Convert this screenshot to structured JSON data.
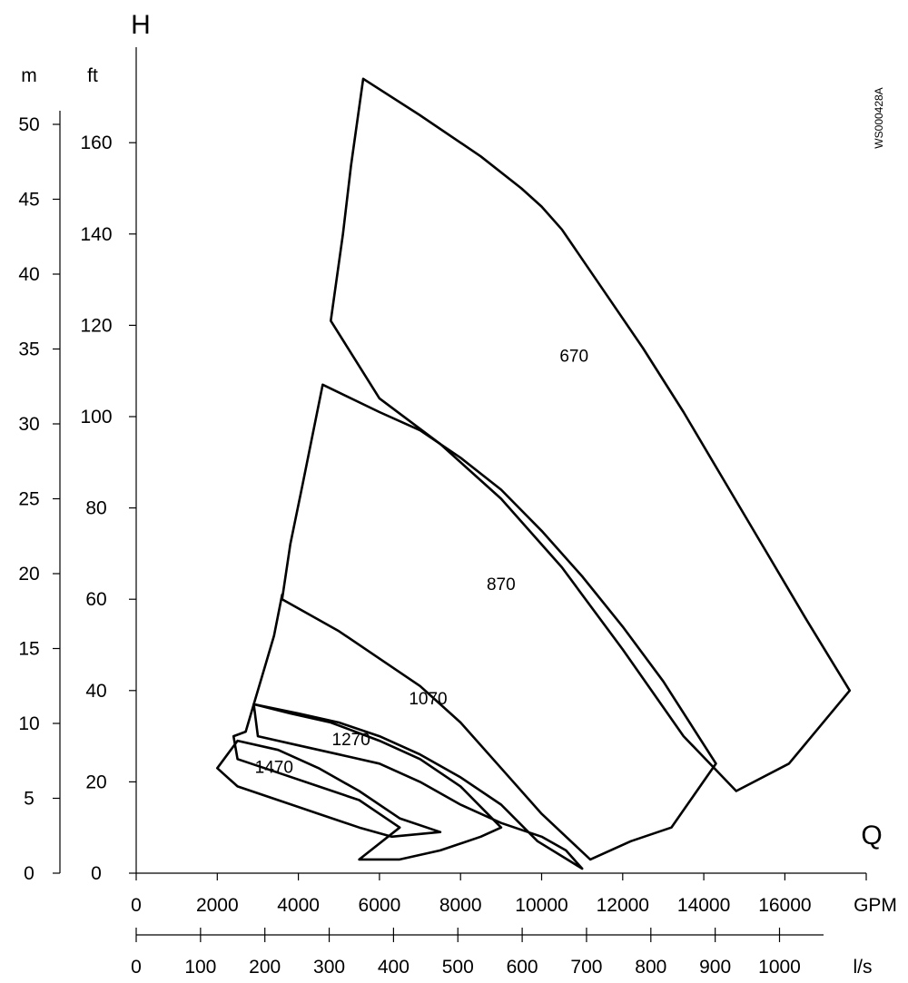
{
  "chart_data": {
    "type": "area",
    "title": "",
    "y_axis_symbol": "H",
    "x_axis_symbol": "Q",
    "image_code": "WS000428A",
    "x_primary": {
      "unit": "GPM",
      "ticks": [
        0,
        2000,
        4000,
        6000,
        8000,
        10000,
        12000,
        14000,
        16000
      ],
      "range": [
        0,
        18000
      ]
    },
    "x_secondary": {
      "unit": "l/s",
      "ticks": [
        0,
        100,
        200,
        300,
        400,
        500,
        600,
        700,
        800,
        900,
        1000
      ],
      "range": [
        0,
        1070
      ]
    },
    "y_metric": {
      "unit": "m",
      "ticks": [
        0,
        5,
        10,
        15,
        20,
        25,
        30,
        35,
        40,
        45,
        50
      ]
    },
    "y_imperial": {
      "unit": "ft",
      "ticks": [
        0,
        20,
        40,
        60,
        80,
        100,
        120,
        140,
        160
      ],
      "range": [
        0,
        180
      ]
    },
    "series": [
      {
        "name": "670",
        "label_at": {
          "gpm": 10800,
          "ft": 112
        },
        "points": [
          [
            5600,
            174
          ],
          [
            7000,
            166
          ],
          [
            8500,
            157
          ],
          [
            9500,
            150
          ],
          [
            10000,
            146
          ],
          [
            10500,
            141
          ],
          [
            11500,
            128
          ],
          [
            12500,
            115
          ],
          [
            13500,
            101
          ],
          [
            14500,
            86
          ],
          [
            15500,
            71
          ],
          [
            16500,
            56
          ],
          [
            17600,
            40
          ],
          [
            16100,
            24
          ],
          [
            14800,
            18
          ],
          [
            13500,
            30
          ],
          [
            12000,
            49
          ],
          [
            10500,
            67
          ],
          [
            9000,
            82
          ],
          [
            7500,
            94
          ],
          [
            6000,
            104
          ],
          [
            4800,
            121
          ],
          [
            5100,
            140
          ],
          [
            5300,
            155
          ],
          [
            5600,
            174
          ]
        ]
      },
      {
        "name": "870",
        "label_at": {
          "gpm": 9000,
          "ft": 62
        },
        "points": [
          [
            4600,
            107
          ],
          [
            6000,
            101
          ],
          [
            7000,
            97
          ],
          [
            8000,
            91
          ],
          [
            9000,
            84
          ],
          [
            10000,
            75
          ],
          [
            11000,
            65
          ],
          [
            12000,
            54
          ],
          [
            13000,
            42
          ],
          [
            14300,
            24
          ],
          [
            13200,
            10
          ],
          [
            12200,
            7
          ],
          [
            11200,
            3
          ],
          [
            10000,
            13
          ],
          [
            9000,
            23
          ],
          [
            8000,
            33
          ],
          [
            7000,
            41
          ],
          [
            6000,
            47
          ],
          [
            5000,
            53
          ],
          [
            3600,
            60
          ],
          [
            3800,
            72
          ],
          [
            4100,
            85
          ],
          [
            4600,
            107
          ]
        ]
      },
      {
        "name": "1070",
        "label_at": {
          "gpm": 7200,
          "ft": 37
        },
        "points": [
          [
            3600,
            61
          ],
          [
            3400,
            52
          ],
          [
            3200,
            46
          ],
          [
            2900,
            37
          ],
          [
            4000,
            35
          ],
          [
            5000,
            33
          ],
          [
            6000,
            30
          ],
          [
            7000,
            26
          ],
          [
            8000,
            21
          ],
          [
            9000,
            15
          ],
          [
            9900,
            7
          ],
          [
            11000,
            1
          ],
          [
            10800,
            3
          ],
          [
            10600,
            5
          ],
          [
            10000,
            8
          ],
          [
            9000,
            11
          ],
          [
            8000,
            15
          ],
          [
            7000,
            20
          ],
          [
            6000,
            24
          ],
          [
            5000,
            26
          ],
          [
            4000,
            28
          ],
          [
            3000,
            30
          ],
          [
            2900,
            37
          ],
          [
            3200,
            46
          ],
          [
            3400,
            52
          ],
          [
            3600,
            61
          ]
        ]
      },
      {
        "name": "1270",
        "label_at": {
          "gpm": 5300,
          "ft": 28
        },
        "points": [
          [
            2400,
            30
          ],
          [
            2700,
            31
          ],
          [
            2900,
            37
          ],
          [
            2900,
            37
          ],
          [
            3800,
            35
          ],
          [
            4800,
            33
          ],
          [
            6000,
            29
          ],
          [
            7000,
            25
          ],
          [
            8000,
            19
          ],
          [
            9000,
            10
          ],
          [
            8500,
            8
          ],
          [
            7500,
            5
          ],
          [
            6500,
            3
          ],
          [
            5500,
            3
          ],
          [
            6500,
            10
          ],
          [
            5500,
            16
          ],
          [
            4500,
            19
          ],
          [
            3500,
            22
          ],
          [
            2500,
            25
          ],
          [
            2400,
            30
          ]
        ]
      },
      {
        "name": "1470",
        "label_at": {
          "gpm": 3400,
          "ft": 22
        },
        "points": [
          [
            2000,
            23
          ],
          [
            2500,
            29
          ],
          [
            3500,
            27
          ],
          [
            4500,
            23
          ],
          [
            5500,
            18
          ],
          [
            6500,
            12
          ],
          [
            7500,
            9
          ],
          [
            6300,
            8
          ],
          [
            5500,
            10
          ],
          [
            4500,
            13
          ],
          [
            3500,
            16
          ],
          [
            2500,
            19
          ],
          [
            2000,
            23
          ]
        ]
      }
    ]
  }
}
